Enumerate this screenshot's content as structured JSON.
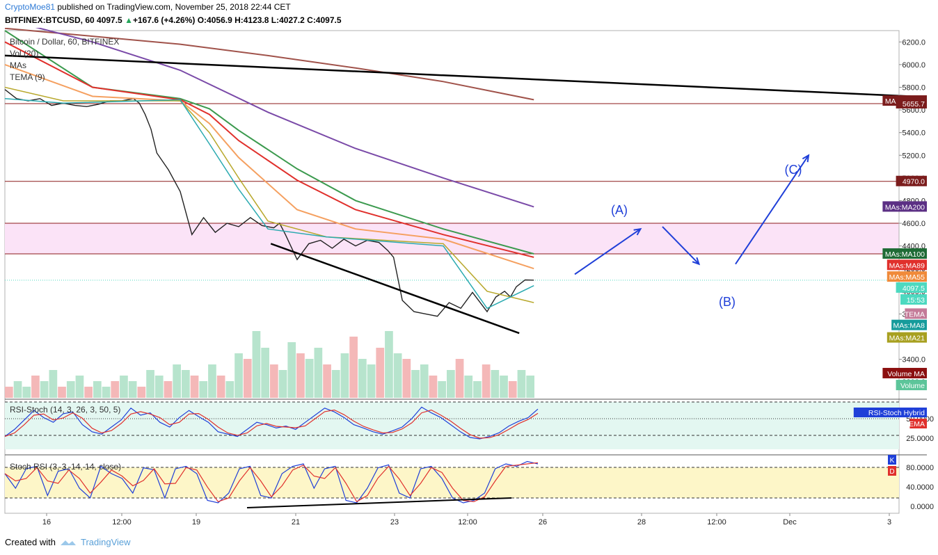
{
  "header": {
    "author": "CryptoMoe81",
    "published": " published on TradingView.com, November 25, 2018 22:44 CET",
    "symbol": "BITFINEX:BTCUSD, 60",
    "last": "4097.5",
    "change": "+167.6 (+4.26%)",
    "ohlc": "O:4056.9 H:4123.8 L:4027.2 C:4097.5"
  },
  "legend": {
    "title": "Bitcoin / Dollar, 60, BITFINEX",
    "vol": "Vol (20)",
    "mas": "MAs",
    "tema": "TEMA (9)"
  },
  "footer": {
    "created": "Created with",
    "brand": "TradingView"
  },
  "price_axis_ticks": [
    "6200.0",
    "6000.0",
    "5800.0",
    "5600.0",
    "5400.0",
    "5200.0",
    "5000.0",
    "4800.0",
    "4600.0",
    "4400.0",
    "4200.0",
    "4000.0",
    "3800.0",
    "3600.0",
    "3400.0",
    "3200.0"
  ],
  "time_axis_ticks": [
    "16",
    "12:00",
    "19",
    "21",
    "23",
    "12:00",
    "26",
    "28",
    "12:00",
    "Dec",
    "3"
  ],
  "price_labels": [
    {
      "text": "MAs:MA500",
      "bg": "#7b1c1c",
      "price": 5680
    },
    {
      "text": "5655.7",
      "bg": "#7b1c1c",
      "price": 5656
    },
    {
      "text": "4970.0",
      "bg": "#7b1c1c",
      "price": 4970
    },
    {
      "text": "MAs:MA200",
      "bg": "#5b2f84",
      "price": 4745
    },
    {
      "text": "MAs:MA100",
      "bg": "#1e6b35",
      "price": 4330
    },
    {
      "text": "MAs:MA89",
      "bg": "#e0302c",
      "price": 4230
    },
    {
      "text": "MAs:MA55",
      "bg": "#f08a3a",
      "price": 4127
    },
    {
      "text": "4097.5",
      "bg": "#4dd9c0",
      "price": 4030
    },
    {
      "text": "15:53",
      "bg": "#4dd9c0",
      "price": 3925
    },
    {
      "text": "TEMA",
      "bg": "#c47a98",
      "price": 3800
    },
    {
      "text": "MAs:MA8",
      "bg": "#159b9b",
      "price": 3700
    },
    {
      "text": "MAs:MA21",
      "bg": "#a8a020",
      "price": 3590
    },
    {
      "text": "Volume MA",
      "bg": "#8b0f0f",
      "price": 3275
    },
    {
      "text": "Volume",
      "bg": "#5cc59a",
      "price": 3170
    }
  ],
  "wave_labels": [
    "(A)",
    "(B)",
    "(C)"
  ],
  "rsi_stoch": {
    "title": "RSI-Stoch (14, 3, 26, 3, 50, 5)",
    "ticks": [
      "50.0000",
      "25.0000"
    ],
    "labels": [
      {
        "text": "RSI-Stoch Hybrid",
        "bg": "#1f3fd8"
      },
      {
        "text": "EMA",
        "bg": "#e0302c"
      }
    ]
  },
  "stoch_rsi": {
    "title": "Stoch RSI (3, 3, 14, 14, close)",
    "ticks": [
      "80.0000",
      "40.0000",
      "0.0000"
    ],
    "labels": [
      {
        "text": "K",
        "bg": "#1f3fd8"
      },
      {
        "text": "D",
        "bg": "#e0302c"
      }
    ]
  },
  "chart_data": {
    "type": "line",
    "title": "Bitcoin / Dollar, 60, BITFINEX",
    "price_range": [
      3060,
      6300
    ],
    "last_price": 4097.5,
    "horizontal_levels": [
      5655.7,
      4970.0,
      4600,
      4330
    ],
    "resistance_zone": [
      4330,
      4600
    ],
    "series": [
      {
        "name": "Price",
        "x": [
          0,
          8,
          16,
          24,
          32,
          40,
          48,
          56,
          64,
          72,
          80,
          88,
          92,
          96,
          100,
          104,
          112,
          120,
          128,
          136,
          144,
          152,
          160,
          168,
          176,
          184,
          188,
          192,
          200,
          208,
          216,
          224,
          232,
          240,
          248,
          256,
          262,
          266,
          272,
          280,
          288,
          296,
          304,
          312,
          320,
          330,
          336,
          342,
          346,
          350,
          356,
          362
        ],
        "values": [
          5780,
          5700,
          5680,
          5700,
          5640,
          5660,
          5640,
          5630,
          5650,
          5680,
          5680,
          5700,
          5660,
          5560,
          5430,
          5220,
          5070,
          4880,
          4500,
          4650,
          4520,
          4600,
          4570,
          4650,
          4580,
          4560,
          4600,
          4500,
          4280,
          4420,
          4450,
          4380,
          4460,
          4400,
          4450,
          4430,
          4360,
          4300,
          3920,
          3820,
          3800,
          3780,
          3900,
          3850,
          3990,
          3820,
          3950,
          4000,
          3950,
          4040,
          4100,
          4098
        ]
      },
      {
        "name": "MAs:MA500",
        "x": [
          0,
          60,
          120,
          180,
          240,
          300,
          362
        ],
        "values": [
          6320,
          6250,
          6180,
          6080,
          5970,
          5850,
          5690
        ]
      },
      {
        "name": "MAs:MA200",
        "x": [
          0,
          60,
          120,
          180,
          240,
          300,
          362
        ],
        "values": [
          6400,
          6200,
          5950,
          5580,
          5260,
          5000,
          4745
        ]
      },
      {
        "name": "MAs:MA100",
        "x": [
          0,
          60,
          120,
          140,
          160,
          200,
          240,
          300,
          362
        ],
        "values": [
          6300,
          5800,
          5700,
          5610,
          5420,
          5080,
          4800,
          4550,
          4330
        ]
      },
      {
        "name": "MAs:MA89",
        "x": [
          0,
          60,
          120,
          140,
          160,
          200,
          240,
          300,
          362
        ],
        "values": [
          6200,
          5800,
          5690,
          5560,
          5330,
          4980,
          4720,
          4500,
          4300
        ]
      },
      {
        "name": "MAs:MA55",
        "x": [
          0,
          60,
          120,
          140,
          160,
          200,
          240,
          300,
          362
        ],
        "values": [
          6000,
          5720,
          5680,
          5480,
          5180,
          4720,
          4550,
          4460,
          4200
        ]
      },
      {
        "name": "MAs:MA21",
        "x": [
          0,
          40,
          120,
          140,
          160,
          180,
          220,
          300,
          330,
          362
        ],
        "values": [
          5800,
          5680,
          5680,
          5400,
          5000,
          4620,
          4480,
          4420,
          4000,
          3900
        ]
      },
      {
        "name": "TEMA",
        "x": [
          0,
          40,
          120,
          140,
          160,
          180,
          220,
          300,
          330,
          362
        ],
        "values": [
          5700,
          5660,
          5690,
          5300,
          4900,
          4550,
          4480,
          4400,
          3850,
          4050
        ]
      }
    ],
    "trendlines": [
      {
        "from": [
          0,
          6080
        ],
        "to": [
          620,
          5720
        ]
      },
      {
        "from": [
          182,
          4420
        ],
        "to": [
          352,
          3630
        ]
      }
    ],
    "projection_arrows": [
      {
        "from": [
          390,
          4150
        ],
        "to": [
          435,
          4550
        ]
      },
      {
        "from": [
          450,
          4570
        ],
        "to": [
          475,
          4240
        ]
      },
      {
        "from": [
          500,
          4240
        ],
        "to": [
          550,
          5200
        ]
      }
    ],
    "volume": [
      2,
      3,
      2,
      4,
      3,
      5,
      2,
      3,
      4,
      2,
      3,
      2,
      3,
      4,
      3,
      2,
      5,
      4,
      3,
      6,
      5,
      4,
      3,
      6,
      4,
      3,
      8,
      7,
      12,
      9,
      6,
      5,
      10,
      8,
      7,
      9,
      6,
      5,
      8,
      11,
      7,
      6,
      9,
      12,
      8,
      7,
      5,
      6,
      4,
      3,
      5,
      7,
      4,
      3,
      6,
      5,
      4,
      3,
      5,
      4
    ],
    "rsi_stoch_values": [
      30,
      45,
      65,
      85,
      70,
      60,
      78,
      82,
      55,
      40,
      35,
      50,
      65,
      90,
      75,
      80,
      60,
      50,
      70,
      85,
      72,
      60,
      40,
      35,
      30,
      45,
      60,
      55,
      48,
      52,
      45,
      60,
      75,
      90,
      82,
      70,
      55,
      48,
      40,
      35,
      42,
      50,
      68,
      92,
      80,
      70,
      55,
      40,
      28,
      25,
      30,
      38,
      52,
      62,
      70,
      88
    ],
    "stoch_rsi_values": [
      70,
      40,
      80,
      85,
      25,
      75,
      80,
      40,
      20,
      85,
      70,
      60,
      30,
      82,
      78,
      20,
      80,
      85,
      70,
      15,
      10,
      30,
      80,
      85,
      25,
      20,
      70,
      85,
      90,
      40,
      80,
      85,
      15,
      10,
      40,
      82,
      88,
      30,
      20,
      80,
      85,
      60,
      20,
      10,
      15,
      30,
      80,
      90,
      85,
      95,
      90
    ]
  }
}
